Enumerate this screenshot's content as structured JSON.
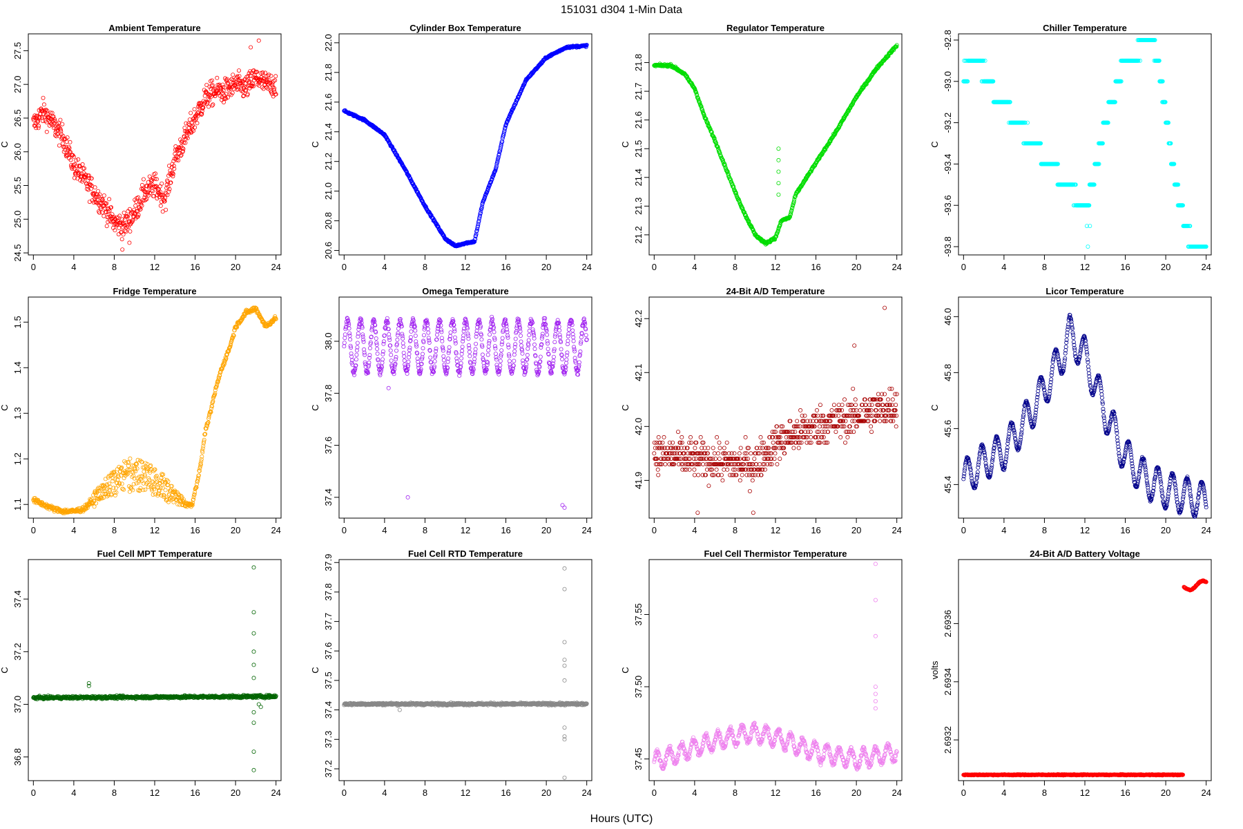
{
  "figure": {
    "title": "151031    d304    1-Min Data",
    "xlabel": "Hours (UTC)",
    "x_ticks": [
      0,
      4,
      8,
      12,
      16,
      20,
      24
    ]
  },
  "chart_data": [
    {
      "type": "scatter",
      "title": "Ambient Temperature",
      "ylabel": "C",
      "color": "#ff0000",
      "xlim": [
        -0.5,
        24.5
      ],
      "ylim": [
        24.47,
        27.75
      ],
      "y_ticks": [
        24.5,
        25.0,
        25.5,
        26.0,
        26.5,
        27.0,
        27.5
      ],
      "key_x": [
        0,
        1,
        2,
        3,
        4,
        5,
        6,
        7,
        8,
        9,
        10,
        11,
        12,
        13,
        14,
        15,
        16,
        17,
        18,
        19,
        20,
        21,
        22,
        23,
        24
      ],
      "key_y": [
        26.4,
        26.6,
        26.4,
        26.2,
        25.8,
        25.6,
        25.4,
        25.2,
        24.95,
        24.9,
        25.1,
        25.4,
        25.5,
        25.3,
        25.9,
        26.2,
        26.5,
        26.8,
        26.9,
        26.9,
        27.0,
        26.95,
        27.1,
        27.0,
        27.0
      ],
      "noise": 0.18,
      "outliers": [
        [
          8.8,
          24.55
        ],
        [
          22.3,
          27.65
        ],
        [
          21.5,
          27.55
        ],
        [
          9.5,
          24.65
        ]
      ]
    },
    {
      "type": "scatter",
      "title": "Cylinder Box Temperature",
      "ylabel": "C",
      "color": "#0000ff",
      "xlim": [
        -0.5,
        24.5
      ],
      "ylim": [
        20.57,
        22.06
      ],
      "y_ticks": [
        20.6,
        20.8,
        21.0,
        21.2,
        21.4,
        21.6,
        21.8,
        22.0
      ],
      "key_x": [
        0,
        2,
        4,
        6,
        8,
        10,
        11,
        12,
        12.9,
        13.7,
        15,
        16,
        18,
        20,
        22,
        24
      ],
      "key_y": [
        21.54,
        21.48,
        21.38,
        21.15,
        20.9,
        20.68,
        20.63,
        20.65,
        20.66,
        20.92,
        21.15,
        21.45,
        21.75,
        21.9,
        21.97,
        21.98
      ],
      "noise": 0.006,
      "outliers": []
    },
    {
      "type": "scatter",
      "title": "Regulator Temperature",
      "ylabel": "C",
      "color": "#00dd00",
      "xlim": [
        -0.5,
        24.5
      ],
      "ylim": [
        21.13,
        21.9
      ],
      "y_ticks": [
        21.2,
        21.3,
        21.4,
        21.5,
        21.6,
        21.7,
        21.8
      ],
      "key_x": [
        0,
        1.7,
        3,
        4,
        5,
        6,
        7,
        8,
        9,
        10,
        11,
        12,
        12.6,
        13.4,
        14,
        16,
        18,
        20,
        22,
        24
      ],
      "key_y": [
        21.79,
        21.79,
        21.76,
        21.71,
        21.61,
        21.53,
        21.44,
        21.35,
        21.27,
        21.2,
        21.17,
        21.19,
        21.25,
        21.26,
        21.34,
        21.45,
        21.56,
        21.68,
        21.78,
        21.86
      ],
      "noise": 0.004,
      "outliers": [
        [
          12.3,
          21.5
        ],
        [
          12.3,
          21.46
        ],
        [
          12.3,
          21.42
        ],
        [
          12.3,
          21.38
        ],
        [
          12.3,
          21.34
        ]
      ]
    },
    {
      "type": "scatter",
      "title": "Chiller Temperature",
      "ylabel": "C",
      "color": "#00ffff",
      "xlim": [
        -0.5,
        24.5
      ],
      "ylim": [
        -93.84,
        -92.77
      ],
      "y_ticks": [
        -93.8,
        -93.6,
        -93.4,
        -93.2,
        -93.0,
        -92.8
      ],
      "quantize": 0.1,
      "key_x": [
        0,
        1,
        2,
        3,
        4,
        5,
        6,
        7,
        8,
        9,
        10,
        11,
        12,
        13,
        14,
        15,
        16,
        17,
        18,
        18.6,
        19.2,
        20,
        21,
        22,
        23,
        24
      ],
      "key_y": [
        -92.97,
        -92.9,
        -92.95,
        -93.05,
        -93.1,
        -93.18,
        -93.25,
        -93.3,
        -93.37,
        -93.42,
        -93.5,
        -93.54,
        -93.64,
        -93.45,
        -93.2,
        -93.05,
        -92.9,
        -92.87,
        -92.8,
        -92.8,
        -92.9,
        -93.15,
        -93.5,
        -93.72,
        -93.8,
        -93.8
      ],
      "noise": 0.02,
      "outliers": [
        [
          12.3,
          -93.8
        ],
        [
          12.2,
          -93.7
        ],
        [
          12.5,
          -93.7
        ]
      ]
    },
    {
      "type": "scatter",
      "title": "Fridge Temperature",
      "ylabel": "C",
      "color": "#ffa500",
      "xlim": [
        -0.5,
        24.5
      ],
      "ylim": [
        1.07,
        1.555
      ],
      "y_ticks": [
        1.1,
        1.2,
        1.3,
        1.4,
        1.5
      ],
      "key_x": [
        0,
        1,
        2,
        3,
        4,
        5,
        6,
        7,
        8,
        9,
        10,
        11,
        12,
        13,
        14,
        15,
        15.7,
        16,
        16.5,
        17,
        17.5,
        18,
        18.5,
        19,
        19.5,
        20,
        21,
        22,
        23,
        24
      ],
      "key_y": [
        1.11,
        1.1,
        1.09,
        1.085,
        1.085,
        1.09,
        1.1,
        1.11,
        1.12,
        1.13,
        1.13,
        1.13,
        1.12,
        1.11,
        1.1,
        1.095,
        1.1,
        1.13,
        1.18,
        1.26,
        1.3,
        1.35,
        1.39,
        1.42,
        1.45,
        1.49,
        1.52,
        1.53,
        1.49,
        1.51
      ],
      "noise": 0.005,
      "bump": {
        "from": 5,
        "to": 15.5,
        "amp": 0.07
      },
      "outliers": []
    },
    {
      "type": "scatter",
      "title": "Omega Temperature",
      "ylabel": "C",
      "color": "#a020f0",
      "xlim": [
        -0.5,
        24.5
      ],
      "ylim": [
        37.32,
        38.17
      ],
      "y_ticks": [
        37.4,
        37.6,
        37.8,
        38.0
      ],
      "key_x": [
        0,
        24
      ],
      "key_y": [
        37.98,
        37.98
      ],
      "wave": {
        "amp": 0.1,
        "period": 1.3
      },
      "noise": 0.012,
      "outliers": [
        [
          6.3,
          37.4
        ],
        [
          21.6,
          37.37
        ],
        [
          21.8,
          37.36
        ],
        [
          4.4,
          37.82
        ]
      ]
    },
    {
      "type": "scatter",
      "title": "24-Bit A/D Temperature",
      "ylabel": "C",
      "color": "#a80000",
      "xlim": [
        -0.5,
        24.5
      ],
      "ylim": [
        41.83,
        42.24
      ],
      "y_ticks": [
        41.9,
        42.0,
        42.1,
        42.2
      ],
      "quantize": 0.01,
      "key_x": [
        0,
        4,
        8,
        10,
        12,
        16,
        20,
        24
      ],
      "key_y": [
        41.95,
        41.94,
        41.93,
        41.93,
        41.97,
        42.0,
        42.02,
        42.04
      ],
      "noise": 0.035,
      "outliers": [
        [
          22.8,
          42.22
        ],
        [
          19.8,
          42.15
        ],
        [
          4.3,
          41.84
        ],
        [
          9.8,
          41.84
        ]
      ]
    },
    {
      "type": "scatter",
      "title": "Licor Temperature",
      "ylabel": "C",
      "color": "#00008b",
      "xlim": [
        -0.5,
        24.5
      ],
      "ylim": [
        45.28,
        46.07
      ],
      "y_ticks": [
        45.4,
        45.6,
        45.8,
        46.0
      ],
      "key_x": [
        0,
        2,
        4,
        6,
        8,
        10,
        10.5,
        12,
        14,
        16,
        18,
        20,
        22,
        24
      ],
      "key_y": [
        45.42,
        45.48,
        45.52,
        45.62,
        45.74,
        45.88,
        45.94,
        45.86,
        45.66,
        45.5,
        45.42,
        45.38,
        45.36,
        45.34
      ],
      "wave": {
        "amp": 0.065,
        "period": 1.45
      },
      "noise": 0.004,
      "outliers": []
    },
    {
      "type": "scatter",
      "title": "Fuel Cell MPT Temperature",
      "ylabel": "C",
      "color": "#006400",
      "xlim": [
        -0.5,
        24.5
      ],
      "ylim": [
        36.71,
        37.55
      ],
      "y_ticks": [
        36.8,
        37.0,
        37.2,
        37.4
      ],
      "key_x": [
        0,
        24
      ],
      "key_y": [
        37.025,
        37.03
      ],
      "noise": 0.005,
      "outliers": [
        [
          21.8,
          37.52
        ],
        [
          21.8,
          37.35
        ],
        [
          21.8,
          37.27
        ],
        [
          21.8,
          37.2
        ],
        [
          21.8,
          37.15
        ],
        [
          21.8,
          37.1
        ],
        [
          21.8,
          36.97
        ],
        [
          21.8,
          36.93
        ],
        [
          21.8,
          36.82
        ],
        [
          21.8,
          36.75
        ],
        [
          5.5,
          37.08
        ],
        [
          5.5,
          37.07
        ],
        [
          22.3,
          37.0
        ],
        [
          22.5,
          36.99
        ]
      ]
    },
    {
      "type": "scatter",
      "title": "Fuel Cell RTD Temperature",
      "ylabel": "C",
      "color": "#888888",
      "xlim": [
        -0.5,
        24.5
      ],
      "ylim": [
        37.16,
        37.91
      ],
      "y_ticks": [
        37.2,
        37.3,
        37.4,
        37.5,
        37.6,
        37.7,
        37.8,
        37.9
      ],
      "key_x": [
        0,
        24
      ],
      "key_y": [
        37.42,
        37.42
      ],
      "noise": 0.004,
      "outliers": [
        [
          21.8,
          37.88
        ],
        [
          21.8,
          37.81
        ],
        [
          21.8,
          37.63
        ],
        [
          21.8,
          37.57
        ],
        [
          21.8,
          37.55
        ],
        [
          21.8,
          37.5
        ],
        [
          21.8,
          37.34
        ],
        [
          21.8,
          37.31
        ],
        [
          21.8,
          37.3
        ],
        [
          21.8,
          37.17
        ],
        [
          5.5,
          37.4
        ]
      ]
    },
    {
      "type": "scatter",
      "title": "Fuel Cell Thermistor Temperature",
      "ylabel": "C",
      "color": "#ee82ee",
      "xlim": [
        -0.5,
        24.5
      ],
      "ylim": [
        37.435,
        37.588
      ],
      "y_ticks": [
        37.45,
        37.5,
        37.55
      ],
      "key_x": [
        0,
        4,
        8,
        10,
        12,
        14,
        16,
        18,
        20,
        22,
        24
      ],
      "key_y": [
        37.448,
        37.458,
        37.466,
        37.468,
        37.465,
        37.46,
        37.455,
        37.452,
        37.45,
        37.452,
        37.455
      ],
      "wave": {
        "amp": 0.006,
        "period": 1.2
      },
      "noise": 0.002,
      "outliers": [
        [
          21.9,
          37.585
        ],
        [
          21.9,
          37.56
        ],
        [
          21.9,
          37.535
        ],
        [
          21.9,
          37.5
        ],
        [
          21.9,
          37.495
        ],
        [
          21.9,
          37.49
        ],
        [
          21.9,
          37.485
        ]
      ]
    },
    {
      "type": "scatter",
      "title": "24-Bit A/D Battery Voltage",
      "ylabel": "volts",
      "color": "#ff0000",
      "xlim": [
        -0.5,
        24.5
      ],
      "ylim": [
        2.69306,
        2.69382
      ],
      "y_ticks": [
        2.6932,
        2.6934,
        2.6936
      ],
      "segments": [
        {
          "x0": 0,
          "x1": 21.7,
          "y0": 2.69308,
          "y1": 2.69308
        },
        {
          "x0": 21.8,
          "x1": 24,
          "y0": 2.69372,
          "y1": 2.69374
        }
      ],
      "noise": 1.5e-06,
      "outliers": []
    }
  ]
}
